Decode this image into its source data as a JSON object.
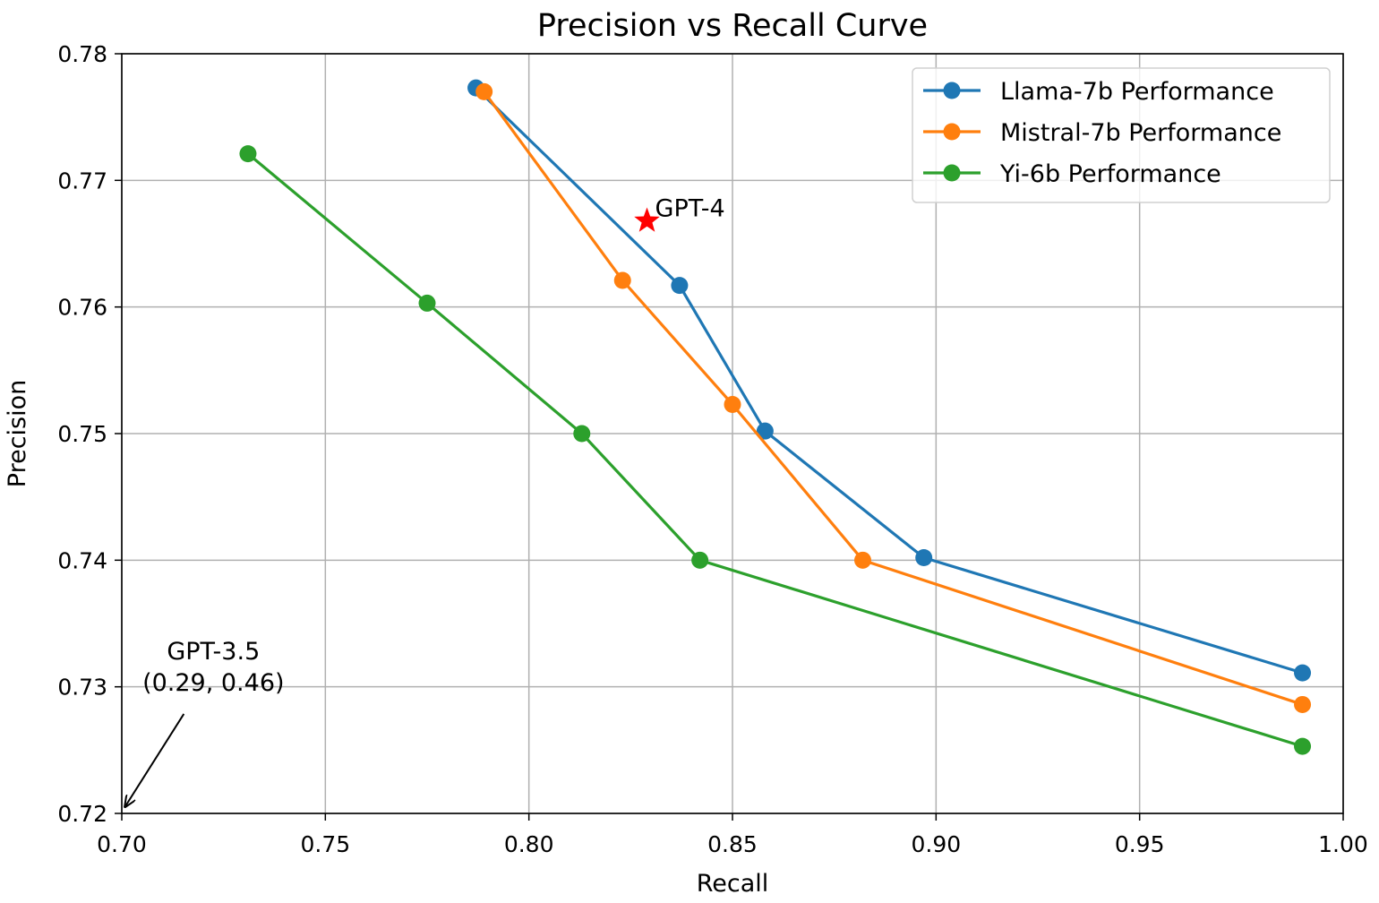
{
  "chart_data": {
    "type": "line",
    "title": "Precision vs Recall Curve",
    "xlabel": "Recall",
    "ylabel": "Precision",
    "xlim": [
      0.7,
      1.0
    ],
    "ylim": [
      0.72,
      0.78
    ],
    "xticks": [
      0.7,
      0.75,
      0.8,
      0.85,
      0.9,
      0.95,
      1.0
    ],
    "xtick_labels": [
      "0.70",
      "0.75",
      "0.80",
      "0.85",
      "0.90",
      "0.95",
      "1.00"
    ],
    "yticks": [
      0.72,
      0.73,
      0.74,
      0.75,
      0.76,
      0.77,
      0.78
    ],
    "ytick_labels": [
      "0.72",
      "0.73",
      "0.74",
      "0.75",
      "0.76",
      "0.77",
      "0.78"
    ],
    "grid": true,
    "legend_position": "top-right",
    "series": [
      {
        "name": "Llama-7b Performance",
        "color": "#1f77b4",
        "marker": "circle",
        "x": [
          0.787,
          0.837,
          0.858,
          0.897,
          0.99
        ],
        "y": [
          0.7773,
          0.7617,
          0.7502,
          0.7402,
          0.7311
        ]
      },
      {
        "name": "Mistral-7b Performance",
        "color": "#ff7f0e",
        "marker": "circle",
        "x": [
          0.789,
          0.823,
          0.85,
          0.882,
          0.99
        ],
        "y": [
          0.777,
          0.7621,
          0.7523,
          0.74,
          0.7286
        ]
      },
      {
        "name": "Yi-6b Performance",
        "color": "#2ca02c",
        "marker": "circle",
        "x": [
          0.731,
          0.775,
          0.813,
          0.842,
          0.99
        ],
        "y": [
          0.7721,
          0.7603,
          0.75,
          0.74,
          0.7253
        ]
      }
    ],
    "points": [
      {
        "label": "GPT-4",
        "x": 0.829,
        "y": 0.7668,
        "marker": "star",
        "color": "#ff0000"
      }
    ],
    "annotations": [
      {
        "text_lines": [
          "GPT-3.5",
          "(0.29, 0.46)"
        ],
        "arrow_target": [
          0.7,
          0.72
        ],
        "text_anchor_data": [
          0.7225,
          0.7297
        ]
      }
    ]
  }
}
